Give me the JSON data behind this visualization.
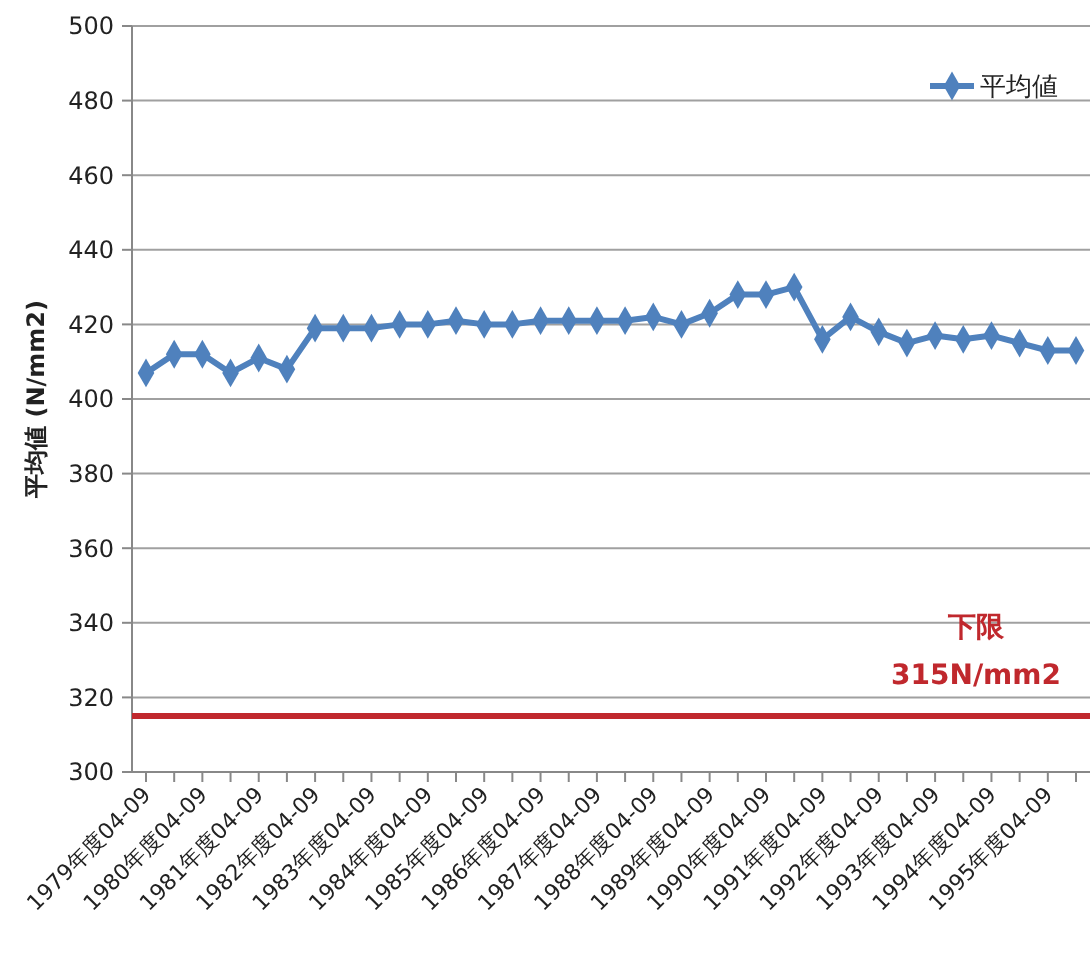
{
  "chart_data": {
    "type": "line",
    "ylabel": "平均値 (N/mm2)",
    "categories": [
      "1979年度04-09",
      null,
      "1980年度04-09",
      null,
      "1981年度04-09",
      null,
      "1982年度04-09",
      null,
      "1983年度04-09",
      null,
      "1984年度04-09",
      null,
      "1985年度04-09",
      null,
      "1986年度04-09",
      null,
      "1987年度04-09",
      null,
      "1988年度04-09",
      null,
      "1989年度04-09",
      null,
      "1990年度04-09",
      null,
      "1991年度04-09",
      null,
      "1992年度04-09",
      null,
      "1993年度04-09",
      null,
      "1994年度04-09",
      null,
      "1995年度04-09",
      null
    ],
    "series": [
      {
        "name": "平均値",
        "color": "#4f81bd",
        "values": [
          407,
          412,
          412,
          407,
          411,
          408,
          419,
          419,
          419,
          420,
          420,
          421,
          420,
          420,
          421,
          421,
          421,
          421,
          422,
          420,
          423,
          428,
          428,
          430,
          416,
          422,
          418,
          415,
          417,
          416,
          417,
          415,
          413,
          413
        ]
      }
    ],
    "ylim": [
      300,
      500
    ],
    "yticks": [
      300,
      320,
      340,
      360,
      380,
      400,
      420,
      440,
      460,
      480,
      500
    ],
    "ref_lines": [
      {
        "axis": "y",
        "value": 315,
        "label": "下限\n315N/mm2",
        "color": "#c0282d"
      }
    ],
    "grid": "y",
    "legend": "top right",
    "marker": "diamond",
    "line_style": "solid"
  }
}
